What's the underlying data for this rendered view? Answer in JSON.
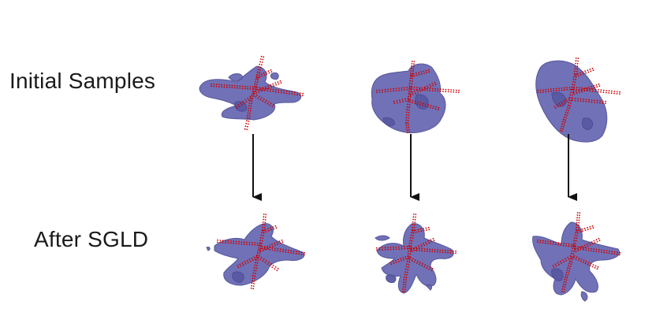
{
  "rows": {
    "initial_label": "Initial Samples",
    "after_label": "After SGLD"
  },
  "colors": {
    "surface": "#6a6ab4",
    "surface_edge": "#4d4d96",
    "surface_shade": "#5959a3",
    "points": "#cc0000",
    "arrow": "#111111"
  },
  "columns": [
    {
      "initial_shape": "sprawling-thin-blobs",
      "after_shape": "star-shaped-body"
    },
    {
      "initial_shape": "compact-rounded-blob",
      "after_shape": "star-shaped-body"
    },
    {
      "initial_shape": "large-ellipsoid-blob",
      "after_shape": "star-shaped-body"
    }
  ],
  "arrow_icon": "down-arrow-icon"
}
